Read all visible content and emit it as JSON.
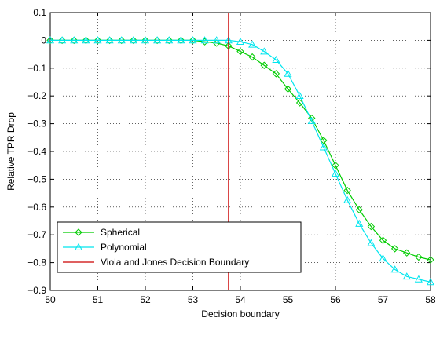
{
  "chart_data": {
    "type": "line",
    "title": "",
    "xlabel": "Decision boundary",
    "ylabel": "Relative TPR Drop",
    "xlim": [
      50,
      58
    ],
    "ylim": [
      -0.9,
      0.1
    ],
    "xticks": [
      50,
      51,
      52,
      53,
      54,
      55,
      56,
      57,
      58
    ],
    "xtick_labels": [
      "50",
      "51",
      "52",
      "53",
      "54",
      "55",
      "56",
      "57",
      "58"
    ],
    "yticks": [
      0.1,
      0,
      -0.1,
      -0.2,
      -0.3,
      -0.4,
      -0.5,
      -0.6,
      -0.7,
      -0.8,
      -0.9
    ],
    "ytick_labels": [
      "0.1",
      "0",
      "−0.1",
      "−0.2",
      "−0.3",
      "−0.4",
      "−0.5",
      "−0.6",
      "−0.7",
      "−0.8",
      "−0.9"
    ],
    "grid": true,
    "legend_position": "bottom-left",
    "x": [
      50.0,
      50.25,
      50.5,
      50.75,
      51.0,
      51.25,
      51.5,
      51.75,
      52.0,
      52.25,
      52.5,
      52.75,
      53.0,
      53.25,
      53.5,
      53.75,
      54.0,
      54.25,
      54.5,
      54.75,
      55.0,
      55.25,
      55.5,
      55.75,
      56.0,
      56.25,
      56.5,
      56.75,
      57.0,
      57.25,
      57.5,
      57.75,
      58.0
    ],
    "series": [
      {
        "name": "Spherical",
        "color": "#00cc00",
        "marker": "diamond",
        "values": [
          0,
          0,
          0,
          0,
          0,
          0,
          0,
          0,
          0,
          0,
          0,
          0,
          0,
          -0.005,
          -0.01,
          -0.02,
          -0.04,
          -0.06,
          -0.09,
          -0.12,
          -0.175,
          -0.225,
          -0.28,
          -0.36,
          -0.45,
          -0.54,
          -0.61,
          -0.67,
          -0.72,
          -0.75,
          -0.765,
          -0.78,
          -0.79
        ]
      },
      {
        "name": "Polynomial",
        "color": "#00e5ee",
        "marker": "triangle",
        "values": [
          0,
          0,
          0,
          0,
          0,
          0,
          0,
          0,
          0,
          0,
          0,
          0,
          0,
          0,
          0,
          0,
          -0.005,
          -0.015,
          -0.04,
          -0.07,
          -0.12,
          -0.2,
          -0.29,
          -0.385,
          -0.48,
          -0.575,
          -0.66,
          -0.73,
          -0.785,
          -0.825,
          -0.85,
          -0.86,
          -0.87
        ]
      },
      {
        "name": "Viola and Jones Decision Boundary",
        "color": "#cc0000",
        "marker": "none",
        "vline_x": 53.75
      }
    ]
  }
}
